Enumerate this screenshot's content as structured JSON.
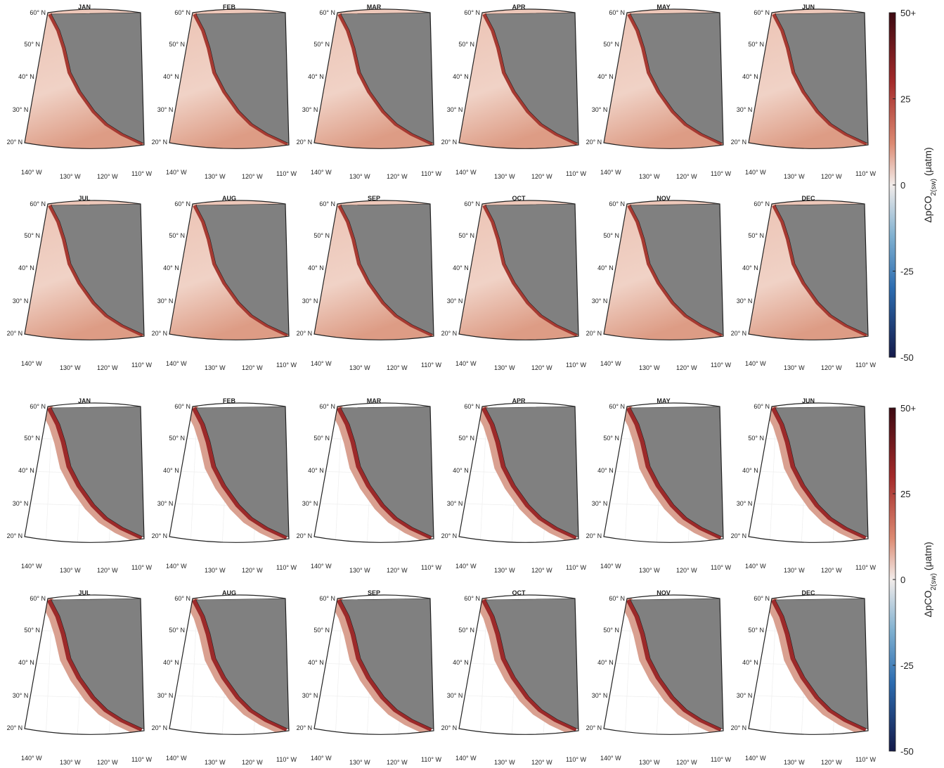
{
  "months": [
    "JAN",
    "FEB",
    "MAR",
    "APR",
    "MAY",
    "JUN",
    "JUL",
    "AUG",
    "SEP",
    "OCT",
    "NOV",
    "DEC"
  ],
  "lat_labels": [
    "60° N",
    "50° N",
    "40° N",
    "30° N",
    "20° N"
  ],
  "lon_labels": [
    "140° W",
    "130° W",
    "120° W",
    "110° W"
  ],
  "colorbars": [
    {
      "ticks": [
        {
          "value": 50,
          "label": "50+"
        },
        25,
        0,
        -25,
        -50
      ],
      "lim": [
        -50,
        50
      ],
      "label": {
        "main": "ΔpCO",
        "sub": "2(sw)",
        "unit": "(μatm)"
      }
    },
    {
      "ticks": [
        {
          "value": 50,
          "label": "50+"
        },
        25,
        0,
        -25,
        -50
      ],
      "lim": [
        -50,
        50
      ],
      "label": {
        "main": "ΔpCO",
        "sub": "2(sw)",
        "unit": "(μatm)"
      }
    }
  ]
}
